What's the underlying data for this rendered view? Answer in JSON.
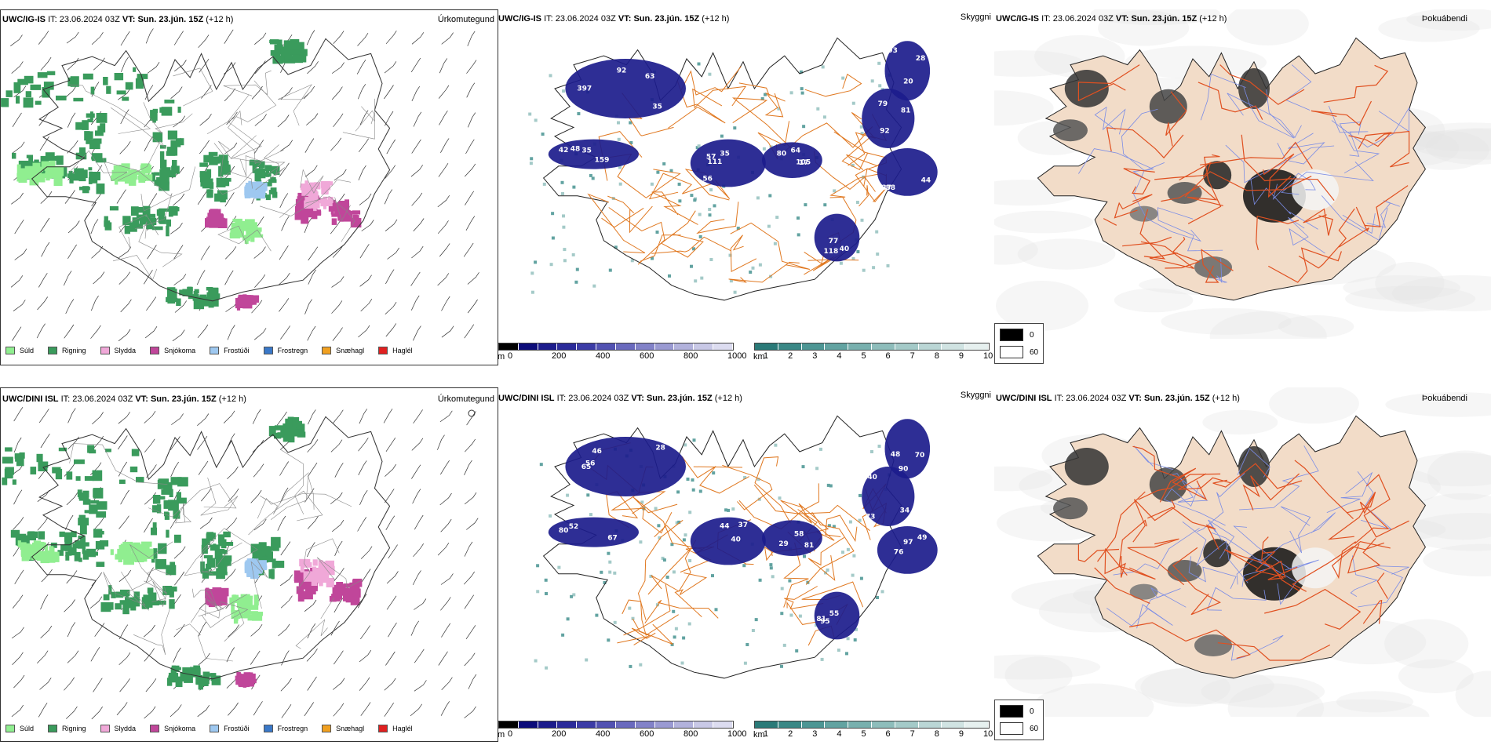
{
  "rows": [
    {
      "model": "UWC/IG-IS",
      "it_label": "IT:",
      "it_value": "23.06.2024 03Z",
      "vt_label": "VT:",
      "vt_value": "Sun. 23.jún. 15Z",
      "lead": "(+12 h)",
      "cloud_labels": [
        "63",
        "48",
        "56",
        "105",
        "92",
        "37",
        "40",
        "93",
        "92",
        "42",
        "35",
        "17",
        "81",
        "44",
        "118",
        "28",
        "35",
        "35",
        "57",
        "64",
        "79",
        "88",
        "77",
        "20",
        "397",
        "159",
        "111",
        "80"
      ]
    },
    {
      "model": "UWC/DINI ISL",
      "it_label": "IT:",
      "it_value": "23.06.2024 03Z",
      "vt_label": "VT:",
      "vt_value": "Sun. 23.jún. 15Z",
      "lead": "(+12 h)",
      "cloud_labels": [
        "56",
        "52",
        "40",
        "58",
        "34",
        "49",
        "95",
        "90",
        "46",
        "67",
        "37",
        "81",
        "73",
        "97",
        "55",
        "48",
        "28",
        "80",
        "44",
        "29",
        "40",
        "76",
        "81",
        "70",
        "65"
      ]
    }
  ],
  "titles": {
    "precip": "Úrkomutegund",
    "visibility": "Skyggni",
    "fog": "Þokuábendi"
  },
  "precip_legend": [
    {
      "label": "Súld",
      "color": "#90ee90"
    },
    {
      "label": "Rigning",
      "color": "#3a9b5c"
    },
    {
      "label": "Slydda",
      "color": "#f0a8d8"
    },
    {
      "label": "Snjókoma",
      "color": "#c0469a"
    },
    {
      "label": "Frostúði",
      "color": "#9ec8f0"
    },
    {
      "label": "Frostregn",
      "color": "#3a78c8"
    },
    {
      "label": "Snæhagl",
      "color": "#f0a020"
    },
    {
      "label": "Haglél",
      "color": "#e02020"
    }
  ],
  "height_scale": {
    "unit": "m",
    "ticks": [
      "0",
      "200",
      "400",
      "600",
      "800",
      "1000"
    ],
    "colors": [
      "#000000",
      "#0d0d7a",
      "#1c1c8c",
      "#2b2b9a",
      "#3c3ca6",
      "#5252b2",
      "#6a6abe",
      "#8282c8",
      "#9a9ad2",
      "#b2b2dc",
      "#c8c8e6",
      "#dcdcf0"
    ]
  },
  "visibility_scale": {
    "unit": "km",
    "ticks": [
      "1",
      "2",
      "3",
      "4",
      "5",
      "6",
      "7",
      "8",
      "9",
      "10"
    ],
    "colors": [
      "#2a7a78",
      "#3a8886",
      "#4d9694",
      "#62a3a1",
      "#78b0ae",
      "#8ebdbb",
      "#a4cac8",
      "#bad6d5",
      "#d0e3e2",
      "#e6f0ef"
    ]
  },
  "fog_legend": [
    {
      "value": "0",
      "color": "#000000"
    },
    {
      "value": "60",
      "color": "#ffffff"
    }
  ]
}
